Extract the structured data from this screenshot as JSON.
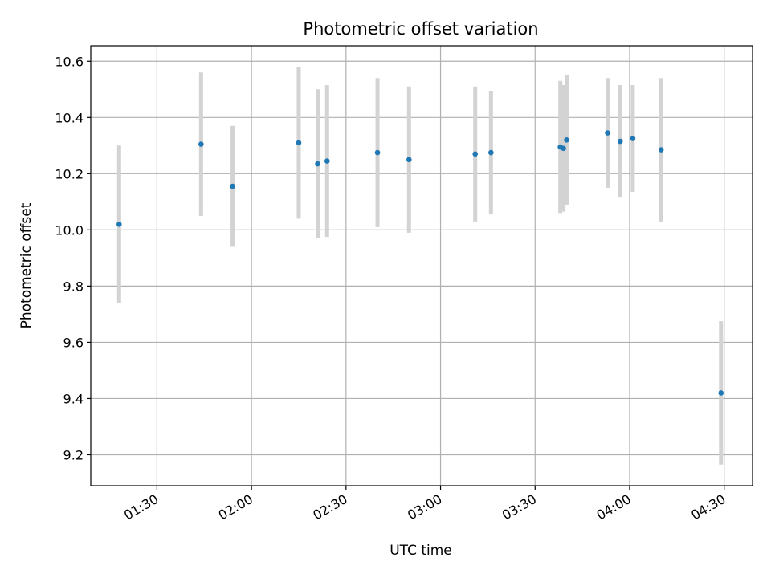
{
  "chart_data": {
    "type": "scatter",
    "title": "Photometric offset variation",
    "xlabel": "UTC time",
    "ylabel": "Photometric offset",
    "xlim": [
      "01:09",
      "04:39"
    ],
    "ylim": [
      9.09,
      10.655
    ],
    "grid": true,
    "x_ticks": [
      "01:30",
      "02:00",
      "02:30",
      "03:00",
      "03:30",
      "04:00",
      "04:30"
    ],
    "y_ticks": [
      9.2,
      9.4,
      9.6,
      9.8,
      10.0,
      10.2,
      10.4,
      10.6
    ],
    "marker_color": "#1f77b4",
    "errorbar_color": "#d3d3d3",
    "points": [
      {
        "time": "01:18",
        "value": 10.02,
        "error": 0.28
      },
      {
        "time": "01:44",
        "value": 10.305,
        "error": 0.255
      },
      {
        "time": "01:54",
        "value": 10.155,
        "error": 0.215
      },
      {
        "time": "02:15",
        "value": 10.31,
        "error": 0.27
      },
      {
        "time": "02:21",
        "value": 10.235,
        "error": 0.265
      },
      {
        "time": "02:24",
        "value": 10.245,
        "error": 0.27
      },
      {
        "time": "02:40",
        "value": 10.275,
        "error": 0.265
      },
      {
        "time": "02:50",
        "value": 10.25,
        "error": 0.26
      },
      {
        "time": "03:11",
        "value": 10.27,
        "error": 0.24
      },
      {
        "time": "03:16",
        "value": 10.275,
        "error": 0.22
      },
      {
        "time": "03:38",
        "value": 10.295,
        "error": 0.235
      },
      {
        "time": "03:39",
        "value": 10.29,
        "error": 0.225
      },
      {
        "time": "03:40",
        "value": 10.32,
        "error": 0.23
      },
      {
        "time": "03:53",
        "value": 10.345,
        "error": 0.195
      },
      {
        "time": "03:57",
        "value": 10.315,
        "error": 0.2
      },
      {
        "time": "04:01",
        "value": 10.325,
        "error": 0.19
      },
      {
        "time": "04:10",
        "value": 10.285,
        "error": 0.255
      },
      {
        "time": "04:29",
        "value": 9.42,
        "error": 0.255
      }
    ]
  }
}
